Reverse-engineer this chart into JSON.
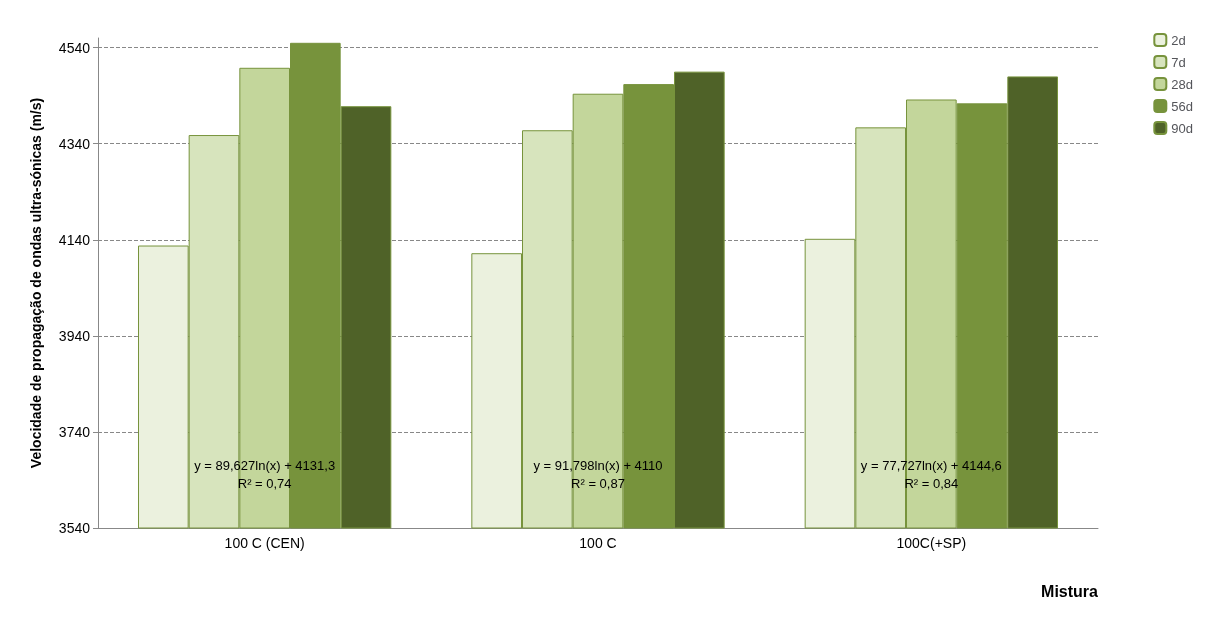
{
  "chart_data": {
    "type": "bar",
    "xlabel": "Mistura",
    "ylabel": "Velocidade de propagação de ondas ultra-sónicas (m/s)",
    "categories": [
      "100 C (CEN)",
      "100 C",
      "100C(+SP)"
    ],
    "series": [
      {
        "name": "2d",
        "color": "#ebf1de",
        "values": [
          4128,
          4112,
          4142
        ]
      },
      {
        "name": "7d",
        "color": "#d7e4bd",
        "values": [
          4358,
          4368,
          4374
        ]
      },
      {
        "name": "28d",
        "color": "#c3d69b",
        "values": [
          4498,
          4444,
          4432
        ]
      },
      {
        "name": "56d",
        "color": "#77933c",
        "values": [
          4550,
          4464,
          4424
        ]
      },
      {
        "name": "90d",
        "color": "#4f6228",
        "values": [
          4418,
          4490,
          4480
        ]
      }
    ],
    "ylim": [
      3540,
      4560
    ],
    "yticks": [
      3540,
      3740,
      3940,
      4140,
      4340,
      4540
    ],
    "grid": "y",
    "legend": "right",
    "annotations": [
      "y = 89,627ln(x) + 4131,3\nR² = 0,74",
      "y = 91,798ln(x) + 4110\nR² = 0,87",
      "y = 77,727ln(x) + 4144,6\nR² = 0,84"
    ]
  }
}
